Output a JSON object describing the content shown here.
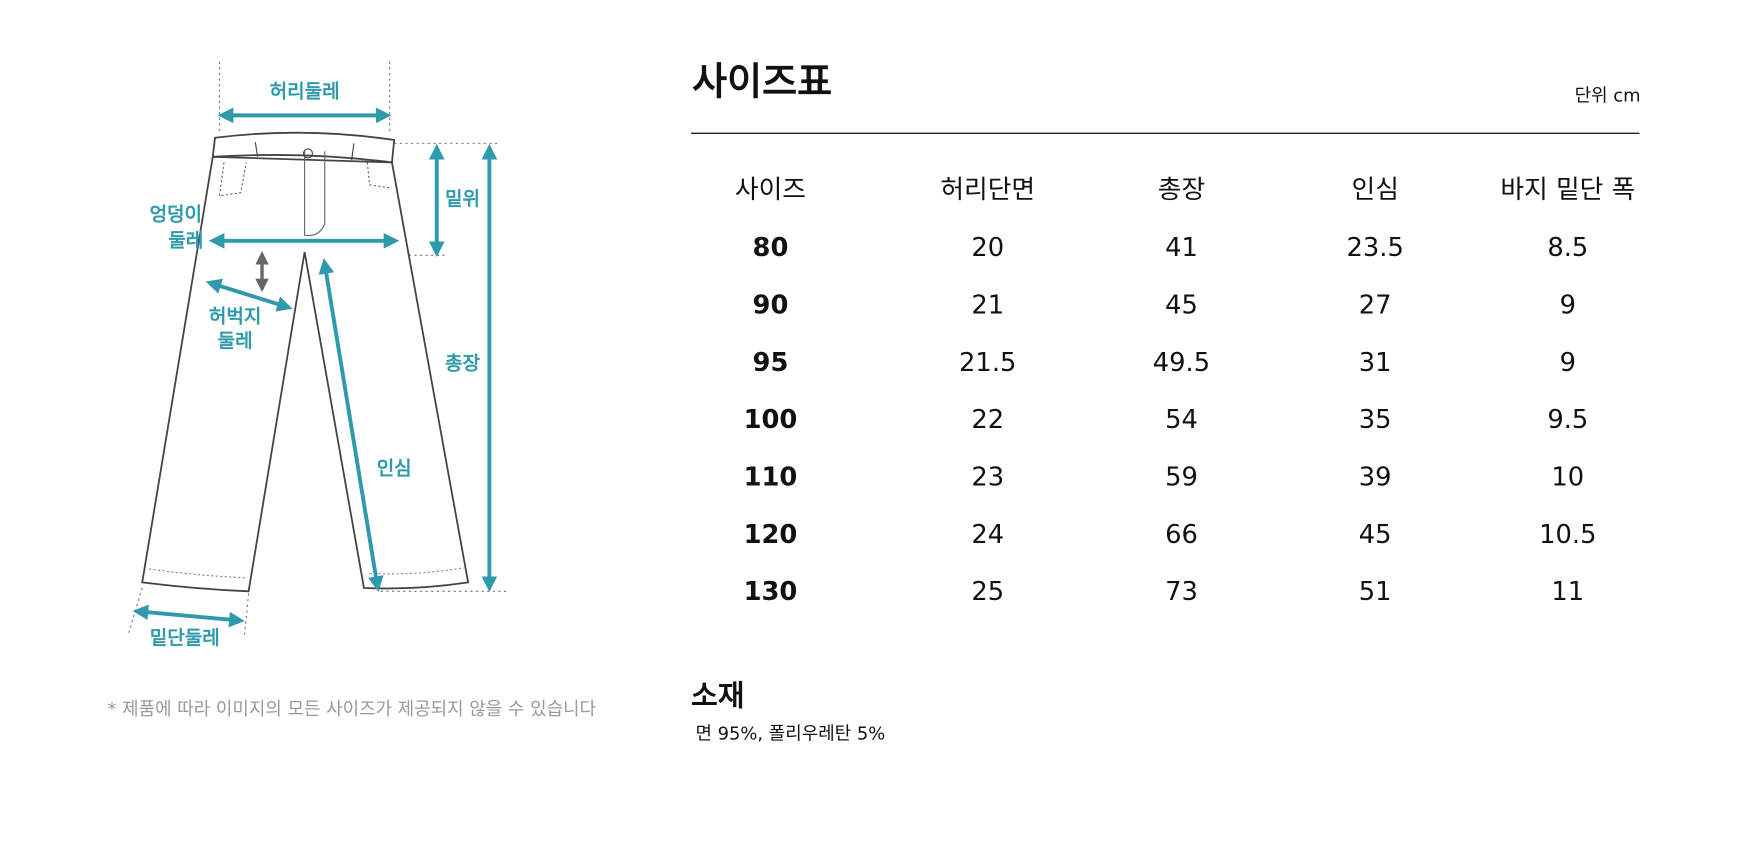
{
  "header": {
    "title": "사이즈표",
    "unit": "단위 cm"
  },
  "table": {
    "columns": [
      "사이즈",
      "허리단면",
      "총장",
      "인심",
      "바지 밑단 폭"
    ],
    "rows": [
      [
        80,
        20,
        41,
        23.5,
        8.5
      ],
      [
        90,
        21,
        45,
        27,
        9
      ],
      [
        95,
        21.5,
        49.5,
        31,
        9
      ],
      [
        100,
        22,
        54,
        35,
        9.5
      ],
      [
        110,
        23,
        59,
        39,
        10
      ],
      [
        120,
        24,
        66,
        45,
        10.5
      ],
      [
        130,
        25,
        73,
        51,
        11
      ]
    ]
  },
  "material": {
    "title": "소재",
    "text": "면 95%, 폴리우레탄 5%"
  },
  "note": "* 제품에 따라 이미지의 모든 사이즈가 제공되지 않을 수 있습니다",
  "diagram": {
    "waist": "허리둘레",
    "rise": "밑위",
    "hip": [
      "엉덩이",
      "둘레"
    ],
    "thigh": [
      "허벅지",
      "둘레"
    ],
    "length": "총장",
    "inseam": "인심",
    "hem": "밑단둘레"
  }
}
